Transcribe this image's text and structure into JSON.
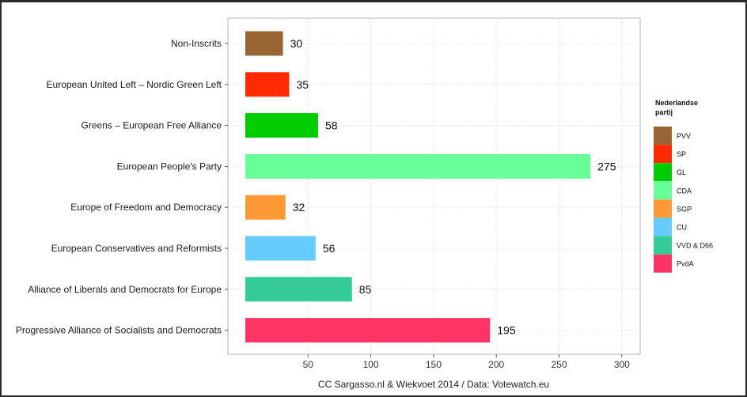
{
  "chart_data": {
    "type": "bar",
    "orientation": "horizontal",
    "categories": [
      "Non-Inscrits",
      "European United Left – Nordic Green Left",
      "Greens – European Free Alliance",
      "European People's Party",
      "Europe of Freedom and Democracy",
      "European Conservatives and Reformists",
      "Alliance of Liberals and Democrats for Europe",
      "Progressive Alliance of Socialists and Democrats"
    ],
    "values": [
      30,
      35,
      58,
      275,
      32,
      56,
      85,
      195
    ],
    "bar_colors": [
      "#996633",
      "#ff2a00",
      "#00cc00",
      "#66ff99",
      "#ff9933",
      "#66ccff",
      "#33cc99",
      "#ff3366"
    ],
    "xlim": [
      0,
      310
    ],
    "xticks": [
      50,
      100,
      150,
      200,
      250,
      300
    ],
    "xlabel": "CC Sargasso.nl & Wiekvoet 2014 / Data: Votewatch.eu",
    "ylabel": "",
    "grid": true,
    "legend": {
      "title": "Nederlandse partij",
      "position": "right",
      "entries": [
        {
          "label": "PVV",
          "color": "#996633"
        },
        {
          "label": "SP",
          "color": "#ff2a00"
        },
        {
          "label": "GL",
          "color": "#00cc00"
        },
        {
          "label": "CDA",
          "color": "#66ff99"
        },
        {
          "label": "SGP",
          "color": "#ff9933"
        },
        {
          "label": "CU",
          "color": "#66ccff"
        },
        {
          "label": "VVD & D66",
          "color": "#33cc99"
        },
        {
          "label": "PvdA",
          "color": "#ff3366"
        }
      ]
    }
  }
}
